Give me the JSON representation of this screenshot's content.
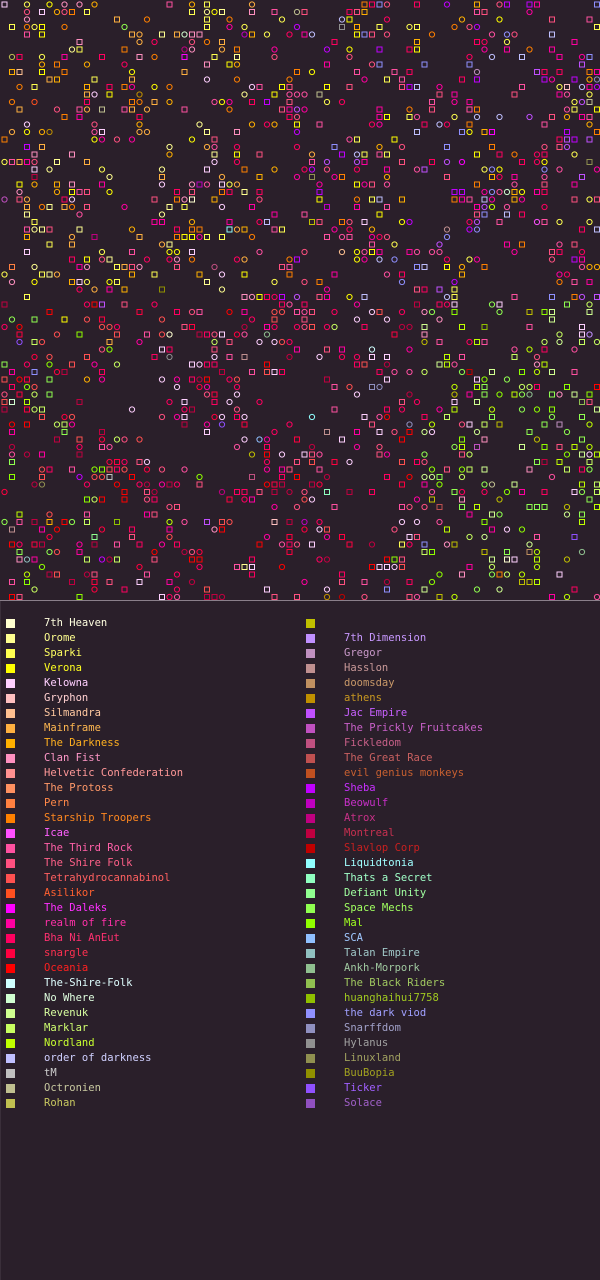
{
  "map": {
    "background": "#2a1f2a",
    "marker_shapes": [
      "square",
      "circle"
    ]
  },
  "legend": {
    "left": [
      {
        "label": "7th Heaven",
        "color": "#ffffd0",
        "text_color": "#ffffe0"
      },
      {
        "label": "Orome",
        "color": "#ffff90",
        "text_color": "#ffff90"
      },
      {
        "label": "Sparki",
        "color": "#ffff50",
        "text_color": "#ffff60"
      },
      {
        "label": "Verona",
        "color": "#ffff00",
        "text_color": "#ffff20"
      },
      {
        "label": "Kelowna",
        "color": "#ffd0ff",
        "text_color": "#ffd0ff"
      },
      {
        "label": "Gryphon",
        "color": "#ffc0c0",
        "text_color": "#ffd0d0"
      },
      {
        "label": "Silmandra",
        "color": "#ffc090",
        "text_color": "#ffc8a0"
      },
      {
        "label": "Mainframe",
        "color": "#ffb040",
        "text_color": "#ffb850"
      },
      {
        "label": "The Darkness",
        "color": "#ffb000",
        "text_color": "#ffb020"
      },
      {
        "label": "Clan Fist",
        "color": "#ff90c0",
        "text_color": "#ff98c8"
      },
      {
        "label": "Helvetic Confederation",
        "color": "#ff9090",
        "text_color": "#ff9898"
      },
      {
        "label": "The Protoss",
        "color": "#ff9060",
        "text_color": "#ff9868"
      },
      {
        "label": "Pern",
        "color": "#ff8040",
        "text_color": "#ff8848"
      },
      {
        "label": "Starship Troopers",
        "color": "#ff8000",
        "text_color": "#ff8820"
      },
      {
        "label": "Icae",
        "color": "#ff50ff",
        "text_color": "#ff60ff"
      },
      {
        "label": "The Third Rock",
        "color": "#ff50a0",
        "text_color": "#ff60a8"
      },
      {
        "label": "The Shire Folk",
        "color": "#ff5080",
        "text_color": "#ff6088"
      },
      {
        "label": "Tetrahydrocannabinol",
        "color": "#ff5050",
        "text_color": "#ff6060"
      },
      {
        "label": "Asilikor",
        "color": "#ff5020",
        "text_color": "#ff6030"
      },
      {
        "label": "The Daleks",
        "color": "#ff00ff",
        "text_color": "#ff30ff"
      },
      {
        "label": "realm of fire",
        "color": "#ff00a0",
        "text_color": "#ff30a8"
      },
      {
        "label": "Bha Ni AnEut",
        "color": "#ff0060",
        "text_color": "#ff3070"
      },
      {
        "label": "snargle",
        "color": "#ff0040",
        "text_color": "#ff3050"
      },
      {
        "label": "Oceania",
        "color": "#ff0000",
        "text_color": "#ff2020"
      },
      {
        "label": "The-Shire-Folk",
        "color": "#d0ffff",
        "text_color": "#e0ffff"
      },
      {
        "label": "No Where",
        "color": "#d0ffd0",
        "text_color": "#e0ffe0"
      },
      {
        "label": "Revenuk",
        "color": "#d0ff90",
        "text_color": "#d8ffa0"
      },
      {
        "label": "Marklar",
        "color": "#c8ff60",
        "text_color": "#d0ff70"
      },
      {
        "label": "Nordland",
        "color": "#c0ff00",
        "text_color": "#c8ff30"
      },
      {
        "label": "order of darkness",
        "color": "#c0c0ff",
        "text_color": "#d0d0ff"
      },
      {
        "label": "tM",
        "color": "#c0c0c0",
        "text_color": "#d0d0d0"
      },
      {
        "label": "Octronien",
        "color": "#c0c090",
        "text_color": "#c8c8a0"
      },
      {
        "label": "Rohan",
        "color": "#c0c050",
        "text_color": "#c8c860"
      }
    ],
    "right": [
      {
        "label": "",
        "color": "#c0c000",
        "text_color": "#c0c000"
      },
      {
        "label": "7th Dimension",
        "color": "#c090ff",
        "text_color": "#c898ff"
      },
      {
        "label": "Gregor",
        "color": "#c090c0",
        "text_color": "#c898c8"
      },
      {
        "label": "Hasslon",
        "color": "#c09090",
        "text_color": "#c89898"
      },
      {
        "label": "doomsday",
        "color": "#c09060",
        "text_color": "#c89868"
      },
      {
        "label": "athens",
        "color": "#c09000",
        "text_color": "#c89820"
      },
      {
        "label": "Jac Empire",
        "color": "#c050ff",
        "text_color": "#c860ff"
      },
      {
        "label": "The Prickly Fruitcakes",
        "color": "#c050c0",
        "text_color": "#c860c8"
      },
      {
        "label": "Fickledom",
        "color": "#c05080",
        "text_color": "#c86088"
      },
      {
        "label": "The Great Race",
        "color": "#c05050",
        "text_color": "#c86060"
      },
      {
        "label": "evil genius monkeys",
        "color": "#c05020",
        "text_color": "#c86030"
      },
      {
        "label": "Sheba",
        "color": "#c000ff",
        "text_color": "#c830ff"
      },
      {
        "label": "Beowulf",
        "color": "#c000c0",
        "text_color": "#c830c8"
      },
      {
        "label": "Atrox",
        "color": "#c00080",
        "text_color": "#c83088"
      },
      {
        "label": "Montreal",
        "color": "#c00040",
        "text_color": "#c83050"
      },
      {
        "label": "Slavlop Corp",
        "color": "#c00000",
        "text_color": "#c82020"
      },
      {
        "label": "Liquidtonia",
        "color": "#90ffff",
        "text_color": "#a0ffff"
      },
      {
        "label": "Thats a Secret",
        "color": "#90ffc0",
        "text_color": "#a0ffc8"
      },
      {
        "label": "Defiant Unity",
        "color": "#90ff90",
        "text_color": "#a0ffa0"
      },
      {
        "label": "Space Mechs",
        "color": "#90ff50",
        "text_color": "#a0ff60"
      },
      {
        "label": "Mal",
        "color": "#90ff00",
        "text_color": "#a0ff20"
      },
      {
        "label": "SCA",
        "color": "#90c0ff",
        "text_color": "#a0c8ff"
      },
      {
        "label": "Talan Empire",
        "color": "#90c0c0",
        "text_color": "#a0c8c8"
      },
      {
        "label": "Ankh-Morpork",
        "color": "#90c090",
        "text_color": "#a0c8a0"
      },
      {
        "label": "The Black Riders",
        "color": "#90c050",
        "text_color": "#a0c860"
      },
      {
        "label": "huanghaihui7758",
        "color": "#90c000",
        "text_color": "#a0c820"
      },
      {
        "label": "the dark viod",
        "color": "#9090ff",
        "text_color": "#a0a0ff"
      },
      {
        "label": "Snarffdom",
        "color": "#9090c0",
        "text_color": "#a0a0c8"
      },
      {
        "label": "Hylanus",
        "color": "#909090",
        "text_color": "#a0a0a0"
      },
      {
        "label": "Linuxland",
        "color": "#909050",
        "text_color": "#a0a060"
      },
      {
        "label": "BuuBopia",
        "color": "#909000",
        "text_color": "#a0a020"
      },
      {
        "label": "Ticker",
        "color": "#9050ff",
        "text_color": "#a060ff"
      },
      {
        "label": "Solace",
        "color": "#9050c0",
        "text_color": "#a060c8"
      }
    ]
  }
}
